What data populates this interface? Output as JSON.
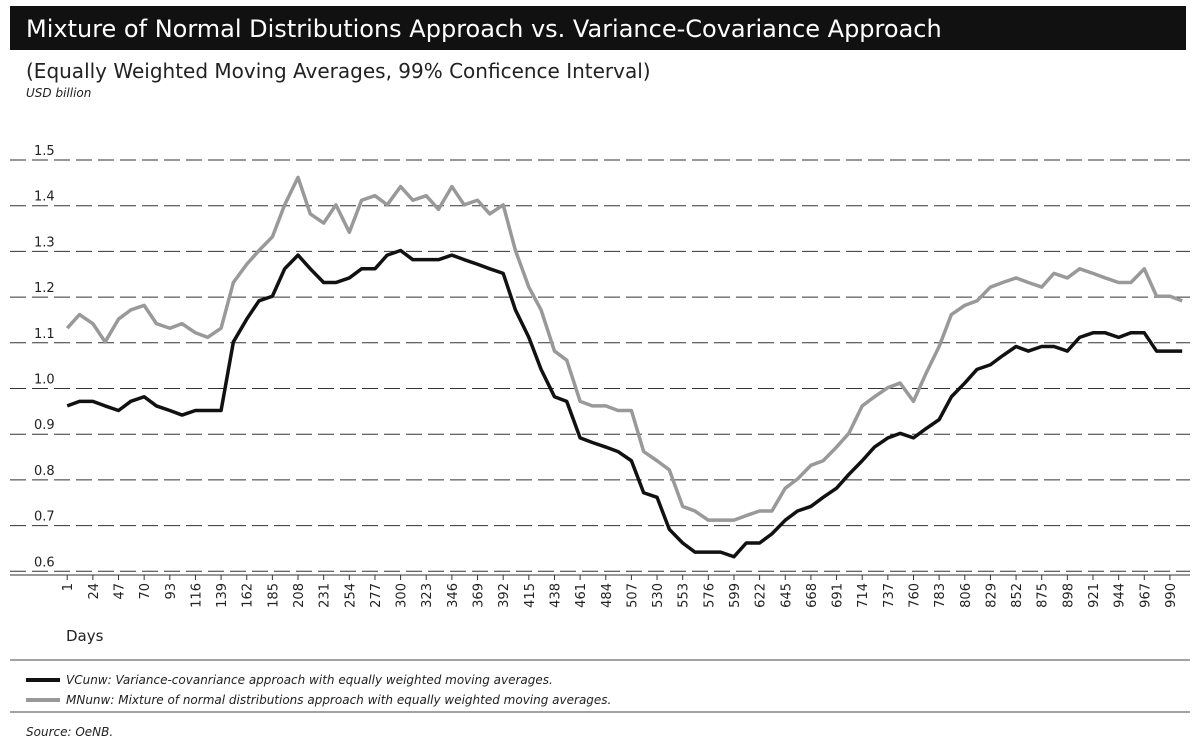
{
  "chart_data": {
    "type": "line",
    "title": "Mixture of Normal Distributions Approach vs. Variance-Covariance Approach",
    "subtitle": "(Equally Weighted Moving Averages, 99% Conficence Interval)",
    "y_label": "USD billion",
    "x_label": "Days",
    "source": "Source: OeNB.",
    "x": [
      1,
      12,
      24,
      35,
      47,
      58,
      70,
      81,
      93,
      104,
      116,
      127,
      139,
      150,
      162,
      173,
      185,
      196,
      208,
      219,
      231,
      242,
      254,
      265,
      277,
      288,
      300,
      311,
      323,
      334,
      346,
      357,
      369,
      380,
      392,
      403,
      415,
      426,
      438,
      449,
      461,
      472,
      484,
      495,
      507,
      518,
      530,
      541,
      553,
      564,
      576,
      587,
      599,
      610,
      622,
      633,
      645,
      656,
      668,
      679,
      691,
      702,
      714,
      725,
      737,
      748,
      760,
      771,
      783,
      794,
      806,
      817,
      829,
      840,
      852,
      863,
      875,
      886,
      898,
      909,
      921,
      932,
      944,
      955,
      967,
      978,
      990,
      1001
    ],
    "series": [
      {
        "name": "VCunw: Variance-covanriance approach with equally weighted moving averages.",
        "color": "#111111",
        "values": [
          0.94,
          0.95,
          0.95,
          0.94,
          0.93,
          0.95,
          0.96,
          0.94,
          0.93,
          0.92,
          0.93,
          0.93,
          0.93,
          1.08,
          1.13,
          1.17,
          1.18,
          1.24,
          1.27,
          1.24,
          1.21,
          1.21,
          1.22,
          1.24,
          1.24,
          1.27,
          1.28,
          1.26,
          1.26,
          1.26,
          1.27,
          1.26,
          1.25,
          1.24,
          1.23,
          1.15,
          1.09,
          1.02,
          0.96,
          0.95,
          0.87,
          0.86,
          0.85,
          0.84,
          0.82,
          0.75,
          0.74,
          0.67,
          0.64,
          0.62,
          0.62,
          0.62,
          0.61,
          0.64,
          0.64,
          0.66,
          0.69,
          0.71,
          0.72,
          0.74,
          0.76,
          0.79,
          0.82,
          0.85,
          0.87,
          0.88,
          0.87,
          0.89,
          0.91,
          0.96,
          0.99,
          1.02,
          1.03,
          1.05,
          1.07,
          1.06,
          1.07,
          1.07,
          1.06,
          1.09,
          1.1,
          1.1,
          1.09,
          1.1,
          1.1,
          1.06,
          1.06,
          1.06
        ]
      },
      {
        "name": "MNunw: Mixture of normal distributions approach with equally weighted moving averages.",
        "color": "#999999",
        "values": [
          1.11,
          1.14,
          1.12,
          1.08,
          1.13,
          1.15,
          1.16,
          1.12,
          1.11,
          1.12,
          1.1,
          1.09,
          1.11,
          1.21,
          1.25,
          1.28,
          1.31,
          1.38,
          1.44,
          1.36,
          1.34,
          1.38,
          1.32,
          1.39,
          1.4,
          1.38,
          1.42,
          1.39,
          1.4,
          1.37,
          1.42,
          1.38,
          1.39,
          1.36,
          1.38,
          1.28,
          1.2,
          1.15,
          1.06,
          1.04,
          0.95,
          0.94,
          0.94,
          0.93,
          0.93,
          0.84,
          0.82,
          0.8,
          0.72,
          0.71,
          0.69,
          0.69,
          0.69,
          0.7,
          0.71,
          0.71,
          0.76,
          0.78,
          0.81,
          0.82,
          0.85,
          0.88,
          0.94,
          0.96,
          0.98,
          0.99,
          0.95,
          1.01,
          1.07,
          1.14,
          1.16,
          1.17,
          1.2,
          1.21,
          1.22,
          1.21,
          1.2,
          1.23,
          1.22,
          1.24,
          1.23,
          1.22,
          1.21,
          1.21,
          1.24,
          1.18,
          1.18,
          1.17
        ]
      }
    ],
    "xlim": [
      -1,
      1008
    ],
    "xticks": [
      1,
      24,
      47,
      70,
      93,
      116,
      139,
      162,
      185,
      208,
      231,
      254,
      277,
      300,
      323,
      346,
      369,
      392,
      415,
      438,
      461,
      484,
      507,
      530,
      553,
      576,
      599,
      622,
      645,
      668,
      691,
      714,
      737,
      760,
      783,
      806,
      829,
      852,
      875,
      898,
      921,
      944,
      967,
      990
    ],
    "ylim": [
      0.57,
      1.57
    ],
    "yticks": [
      0.6,
      0.7,
      0.8,
      0.9,
      {
        "value": 1,
        "label": "1.0"
      },
      1.1,
      1.2,
      1.3,
      1.4,
      1.5
    ],
    "grid": true
  }
}
